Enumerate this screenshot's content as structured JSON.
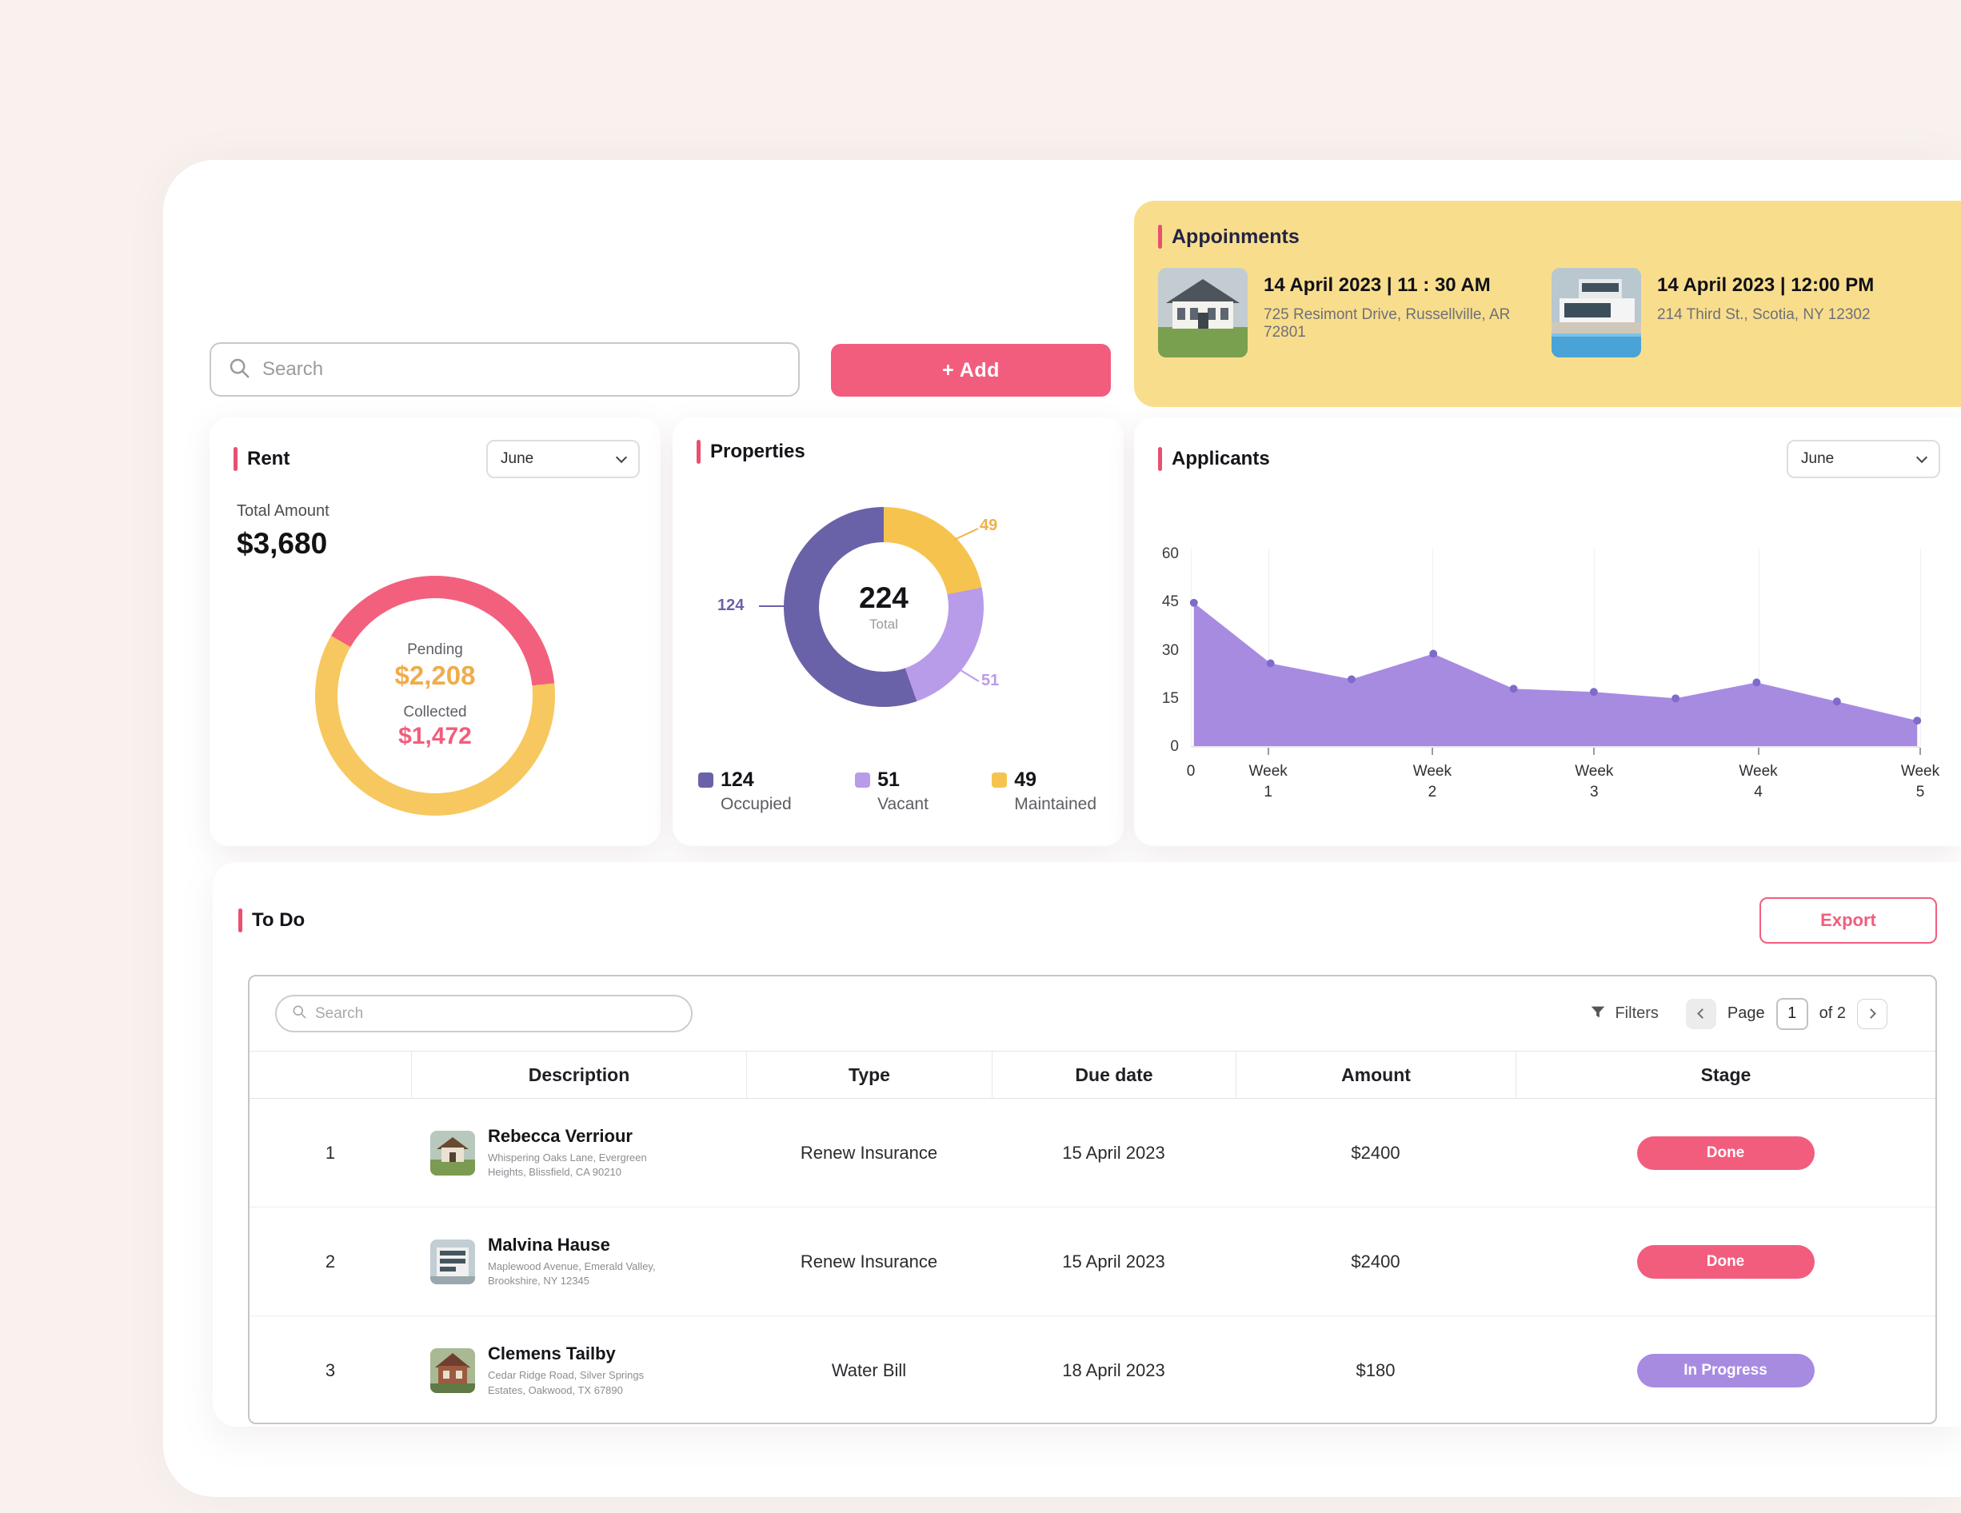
{
  "page": {
    "background": "#f8f1ee",
    "accent": "#E8506E",
    "pink": "#F25D7D",
    "yellow_card": "#F8DE8C"
  },
  "appointments": {
    "title": "Appoinments",
    "items": [
      {
        "datetime": "14 April 2023 | 11 : 30 AM",
        "address": "725 Resimont Drive, Russellville, AR 72801",
        "photo": "colonial-house"
      },
      {
        "datetime": "14 April 2023 | 12:00 PM",
        "address": "214 Third St., Scotia, NY 12302",
        "photo": "modern-pool-house"
      }
    ]
  },
  "toolbar": {
    "search_placeholder": "Search",
    "add_label": "+ Add"
  },
  "rent": {
    "title": "Rent",
    "month": "June",
    "total_label": "Total Amount",
    "total_amount": "$3,680",
    "center": {
      "pending_label": "Pending",
      "pending_amount": "$2,208",
      "collected_label": "Collected",
      "collected_amount": "$1,472"
    }
  },
  "properties": {
    "title": "Properties",
    "center_value": "224",
    "center_label": "Total",
    "legend": [
      {
        "value": "124",
        "label": "Occupied",
        "color": "#6A62A8"
      },
      {
        "value": "51",
        "label": "Vacant",
        "color": "#B89CE9"
      },
      {
        "value": "49",
        "label": "Maintained",
        "color": "#F6C44E"
      }
    ]
  },
  "applicants": {
    "title": "Applicants",
    "month": "June"
  },
  "todo": {
    "title": "To Do",
    "export_label": "Export",
    "search_placeholder": "Search",
    "filters_label": "Filters",
    "pagination": {
      "page_label": "Page",
      "current": "1",
      "of_label": "of 2"
    },
    "columns": [
      "Description",
      "Type",
      "Due date",
      "Amount",
      "Stage"
    ],
    "rows": [
      {
        "index": "1",
        "name": "Rebecca Verriour",
        "address": "Whispering Oaks Lane, Evergreen Heights, Blissfield, CA 90210",
        "type": "Renew Insurance",
        "due": "15 April 2023",
        "amount": "$2400",
        "stage": "Done",
        "stage_color": "pink",
        "photo": "farmhouse"
      },
      {
        "index": "2",
        "name": "Malvina Hause",
        "address": "Maplewood Avenue, Emerald Valley, Brookshire, NY 12345",
        "type": "Renew Insurance",
        "due": "15 April 2023",
        "amount": "$2400",
        "stage": "Done",
        "stage_color": "pink",
        "photo": "modern-building"
      },
      {
        "index": "3",
        "name": "Clemens Tailby",
        "address": "Cedar Ridge Road, Silver Springs Estates, Oakwood, TX 67890",
        "type": "Water Bill",
        "due": "18 April 2023",
        "amount": "$180",
        "stage": "In Progress",
        "stage_color": "purple",
        "photo": "brick-house"
      }
    ]
  },
  "chart_data": [
    {
      "type": "pie",
      "title": "Rent",
      "total": 3680,
      "start_angle": 300,
      "segments": [
        {
          "label": "Collected",
          "value": 1472,
          "color": "#F2607E"
        },
        {
          "label": "Pending",
          "value": 2208,
          "color": "#F7C85F"
        }
      ]
    },
    {
      "type": "pie",
      "title": "Properties",
      "total": 224,
      "start_angle": 0,
      "segments": [
        {
          "label": "Maintained",
          "value": 49,
          "color": "#F6C44E"
        },
        {
          "label": "Vacant",
          "value": 51,
          "color": "#B89CE9"
        },
        {
          "label": "Occupied",
          "value": 124,
          "color": "#6A62A8"
        }
      ]
    },
    {
      "type": "area",
      "title": "Applicants",
      "ylim": [
        0,
        60
      ],
      "yticks": [
        0,
        15,
        30,
        45,
        60
      ],
      "color": "#A78BE1",
      "dot_color": "#7E6BCB",
      "grid": true,
      "x_ticks": [
        {
          "label": "0",
          "pos": 0
        },
        {
          "label": "Week 1",
          "pos": 0.106
        },
        {
          "label": "Week 2",
          "pos": 0.331
        },
        {
          "label": "Week 3",
          "pos": 0.553
        },
        {
          "label": "Week 4",
          "pos": 0.778
        },
        {
          "label": "Week 5",
          "pos": 1
        }
      ],
      "points": [
        {
          "pos": 0,
          "value": 45
        },
        {
          "pos": 0.106,
          "value": 26
        },
        {
          "pos": 0.218,
          "value": 21
        },
        {
          "pos": 0.331,
          "value": 29
        },
        {
          "pos": 0.442,
          "value": 18
        },
        {
          "pos": 0.553,
          "value": 17
        },
        {
          "pos": 0.666,
          "value": 15
        },
        {
          "pos": 0.778,
          "value": 20
        },
        {
          "pos": 0.889,
          "value": 14
        },
        {
          "pos": 1,
          "value": 8
        }
      ]
    }
  ]
}
